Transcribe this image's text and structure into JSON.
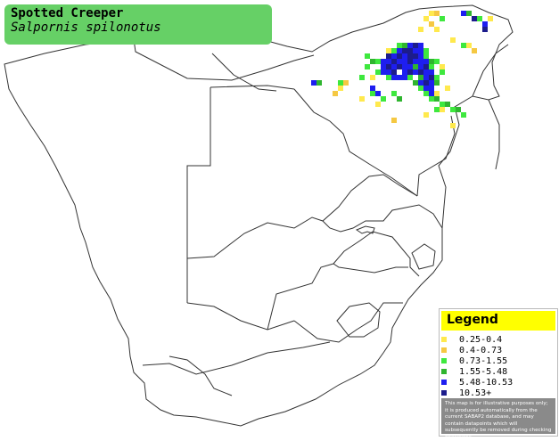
{
  "title": {
    "common_name": "Spotted Creeper",
    "scientific_name": "Salpornis spilonotus"
  },
  "legend": {
    "title": "Legend",
    "items": [
      {
        "label": "0.25-0.4",
        "color": "#ffe94d"
      },
      {
        "label": "0.4-0.73",
        "color": "#f5c842"
      },
      {
        "label": "0.73-1.55",
        "color": "#3ee83e"
      },
      {
        "label": "1.55-5.48",
        "color": "#2fb52f"
      },
      {
        "label": "5.48-10.53",
        "color": "#1e1ef0"
      },
      {
        "label": "10.53+",
        "color": "#1c1c8c"
      }
    ],
    "disclaimer": "This map is for illustrative purposes only; it is produced automatically from the current SABAP2 database, and may contain datapoints which will subsequently be removed during checking operations."
  },
  "colors": {
    "title_bg": "#66d066",
    "legend_header_bg": "#ffff00",
    "map_outline": "#333333"
  }
}
